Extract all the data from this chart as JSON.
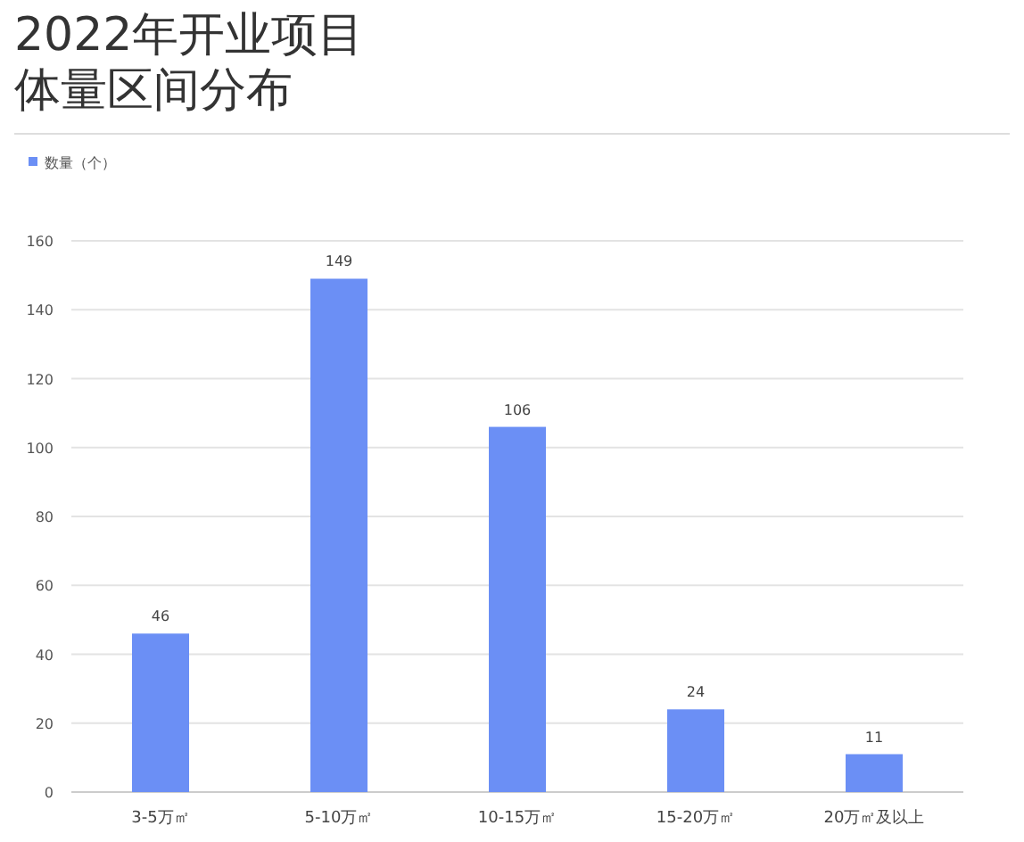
{
  "chart_data": {
    "type": "bar",
    "title": "2022年开业项目",
    "subtitle": "体量区间分布",
    "categories": [
      "3-5万㎡",
      "5-10万㎡",
      "10-15万㎡",
      "15-20万㎡",
      "20万㎡及以上"
    ],
    "series": [
      {
        "name": "数量（个）",
        "color": "#6b8ff5",
        "values": [
          46,
          149,
          106,
          24,
          11
        ]
      }
    ],
    "ylim": [
      0,
      160
    ],
    "yticks": [
      0,
      20,
      40,
      60,
      80,
      100,
      120,
      140,
      160
    ],
    "grid": "y",
    "legend": "top left",
    "data_labels": true
  }
}
